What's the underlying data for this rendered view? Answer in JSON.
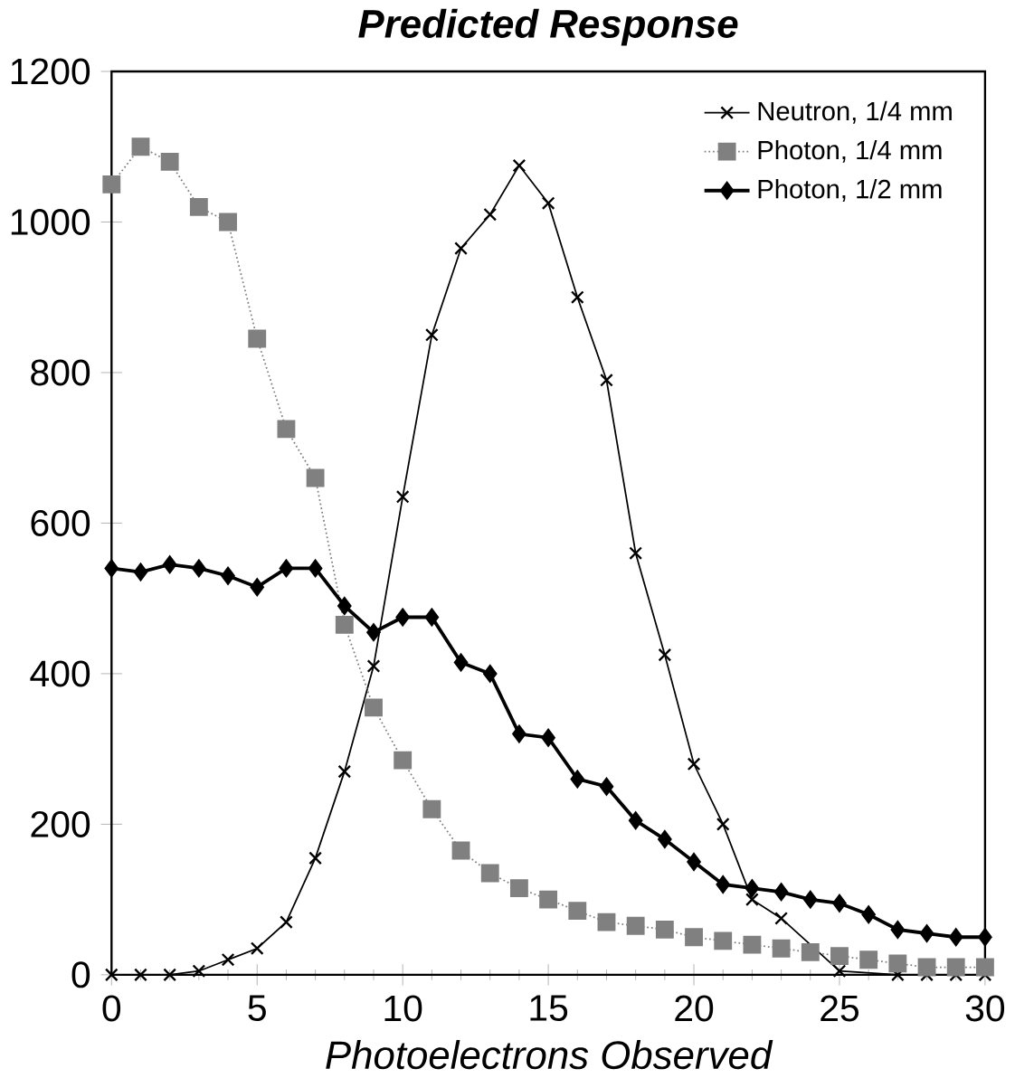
{
  "chart_data": {
    "type": "line",
    "title": "Predicted Response",
    "xlabel": "Photoelectrons Observed",
    "x": [
      0,
      1,
      2,
      3,
      4,
      5,
      6,
      7,
      8,
      9,
      10,
      11,
      12,
      13,
      14,
      15,
      16,
      17,
      18,
      19,
      20,
      21,
      22,
      23,
      24,
      25,
      26,
      27,
      28,
      29,
      30
    ],
    "xlim": [
      0,
      30
    ],
    "xticks": [
      0,
      5,
      10,
      15,
      20,
      25,
      30
    ],
    "ylim": [
      0,
      1200
    ],
    "yticks": [
      0,
      200,
      400,
      600,
      800,
      1000,
      1200
    ],
    "legend": "top right",
    "grid": false,
    "series": [
      {
        "name": "Neutron, 1/4 mm",
        "color": "#000000",
        "marker": "cross",
        "line_style": "solid",
        "values": [
          0,
          0,
          0,
          5,
          20,
          35,
          70,
          155,
          270,
          410,
          635,
          850,
          965,
          1010,
          1075,
          1025,
          900,
          790,
          560,
          425,
          280,
          200,
          100,
          75,
          null,
          5,
          null,
          0,
          0,
          0,
          0
        ]
      },
      {
        "name": "Photon, 1/4 mm",
        "color": "#808080",
        "marker": "square",
        "line_style": "dotted",
        "values": [
          1050,
          1100,
          1080,
          1020,
          1000,
          845,
          725,
          660,
          465,
          355,
          285,
          220,
          165,
          135,
          115,
          100,
          85,
          70,
          65,
          60,
          50,
          45,
          40,
          35,
          30,
          25,
          20,
          15,
          10,
          10,
          10
        ]
      },
      {
        "name": "Photon, 1/2 mm",
        "color": "#000000",
        "marker": "diamond",
        "line_style": "solid",
        "values": [
          540,
          535,
          545,
          540,
          530,
          515,
          540,
          540,
          490,
          455,
          475,
          475,
          415,
          400,
          320,
          315,
          260,
          250,
          205,
          180,
          150,
          120,
          115,
          110,
          100,
          95,
          80,
          60,
          55,
          50,
          50
        ]
      }
    ]
  }
}
